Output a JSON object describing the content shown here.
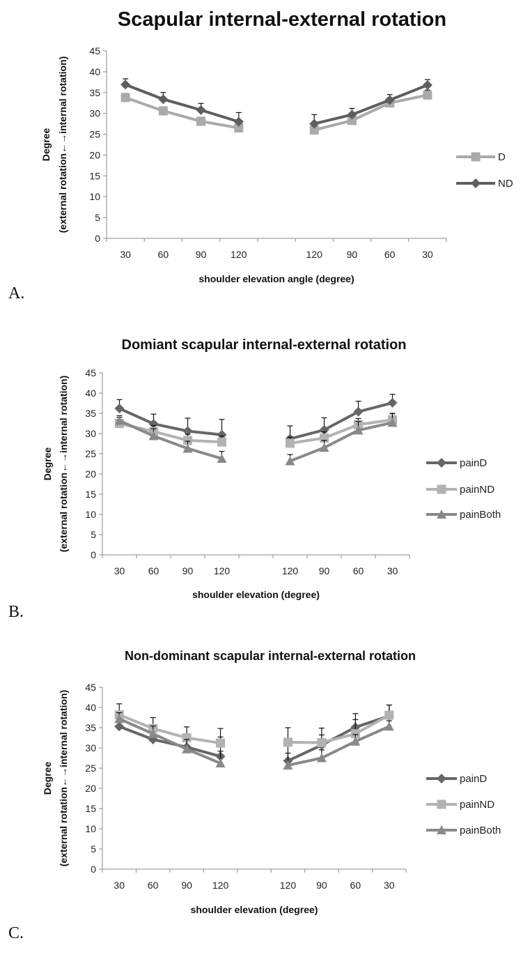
{
  "chart_data": [
    {
      "type": "line",
      "panel_label": "A.",
      "title": "Scapular internal-external rotation",
      "ylabel_line1": "Degree",
      "ylabel_line2": "(external rotation←→internal rotation)",
      "xlabel": "shoulder elevation angle (degree)",
      "categories": [
        "30",
        "60",
        "90",
        "120",
        "",
        "120",
        "90",
        "60",
        "30"
      ],
      "ylim": [
        0,
        45
      ],
      "yticks": [
        0,
        5,
        10,
        15,
        20,
        25,
        30,
        35,
        40,
        45
      ],
      "grid": false,
      "legend_position": "right",
      "series": [
        {
          "name": "D",
          "color": "#aaaaaa",
          "marker": "square",
          "values": [
            33.8,
            30.6,
            28.1,
            26.5,
            null,
            26,
            28.3,
            32.5,
            34.4
          ],
          "error": [
            1,
            1,
            1,
            1,
            null,
            1.2,
            1.2,
            1.2,
            1.2
          ]
        },
        {
          "name": "ND",
          "color": "#5e5e5e",
          "marker": "diamond",
          "values": [
            36.9,
            33.4,
            30.8,
            28,
            null,
            27.5,
            29.7,
            33.2,
            36.8
          ],
          "error": [
            1.4,
            1.6,
            1.6,
            2.2,
            null,
            2.2,
            1.5,
            1.3,
            1.3
          ]
        }
      ]
    },
    {
      "type": "line",
      "panel_label": "B.",
      "title": "Domiant scapular internal-external rotation",
      "ylabel_line1": "Degree",
      "ylabel_line2": "(external rotation←→internal rotation)",
      "xlabel": "shoulder elevation (degree)",
      "categories": [
        "30",
        "60",
        "90",
        "120",
        "",
        "120",
        "90",
        "60",
        "30"
      ],
      "ylim": [
        0,
        45
      ],
      "yticks": [
        0,
        5,
        10,
        15,
        20,
        25,
        30,
        35,
        40,
        45
      ],
      "grid": false,
      "legend_position": "right",
      "series": [
        {
          "name": "painD",
          "color": "#666666",
          "marker": "diamond",
          "values": [
            36.2,
            32.4,
            30.6,
            29.7,
            null,
            28.7,
            30.9,
            35.4,
            37.6
          ],
          "error": [
            2.2,
            2.4,
            3.2,
            3.8,
            null,
            3.2,
            3,
            2.6,
            2.1
          ]
        },
        {
          "name": "painND",
          "color": "#b2b2b2",
          "marker": "square",
          "values": [
            32.5,
            30.5,
            28.3,
            27.9,
            null,
            27.6,
            28.9,
            32.2,
            33.4
          ],
          "error": [
            1.5,
            1.5,
            1.5,
            1.5,
            null,
            1.5,
            1.5,
            1.5,
            1.5
          ]
        },
        {
          "name": "painBoth",
          "color": "#898989",
          "marker": "triangle",
          "values": [
            33.2,
            29.4,
            26.3,
            23.8,
            null,
            23.2,
            26.5,
            30.8,
            32.7
          ],
          "error": [
            1.2,
            1.8,
            1.8,
            1.8,
            null,
            1.6,
            1.8,
            2.2,
            2.3
          ]
        }
      ]
    },
    {
      "type": "line",
      "panel_label": "C.",
      "title": "Non-dominant scapular internal-external rotation",
      "ylabel_line1": "Degree",
      "ylabel_line2": "(external rotation←→internal rotation)",
      "xlabel": "shoulder elevation (degree)",
      "categories": [
        "30",
        "60",
        "90",
        "120",
        "",
        "120",
        "90",
        "60",
        "30"
      ],
      "ylim": [
        0,
        45
      ],
      "yticks": [
        0,
        5,
        10,
        15,
        20,
        25,
        30,
        35,
        40,
        45
      ],
      "grid": false,
      "legend_position": "right",
      "series": [
        {
          "name": "painD",
          "color": "#666666",
          "marker": "diamond",
          "values": [
            35.3,
            32.1,
            30.2,
            27.9,
            null,
            26.8,
            30.7,
            35.1,
            37.9
          ],
          "error": [
            1,
            1.8,
            2.5,
            4.8,
            null,
            4,
            2.5,
            3.4,
            2.7
          ]
        },
        {
          "name": "painND",
          "color": "#b2b2b2",
          "marker": "square",
          "values": [
            38.2,
            34.8,
            32.5,
            31.2,
            null,
            31.4,
            31.3,
            33.5,
            38.1
          ],
          "error": [
            2.7,
            2.7,
            2.7,
            3.6,
            null,
            3.6,
            3.6,
            3.5,
            2.5
          ]
        },
        {
          "name": "painBoth",
          "color": "#898989",
          "marker": "triangle",
          "values": [
            37.2,
            33.5,
            29.7,
            26.2,
            null,
            25.7,
            27.5,
            31.6,
            35.3
          ],
          "error": [
            1.5,
            1.9,
            2.4,
            3,
            null,
            3,
            2,
            1.7,
            1.4
          ]
        }
      ]
    }
  ]
}
